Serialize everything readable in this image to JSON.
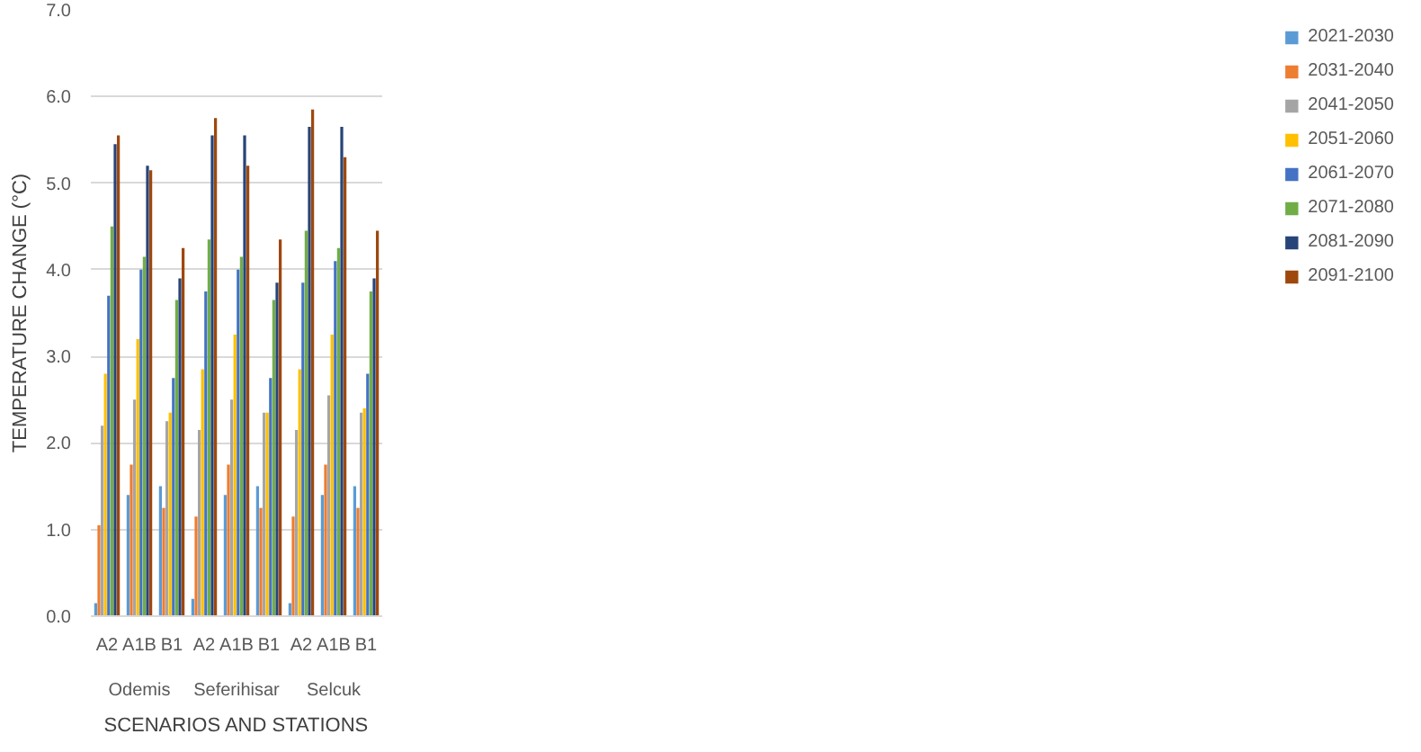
{
  "chart_data": {
    "type": "bar",
    "xlabel": "SCENARIOS AND STATIONS",
    "ylabel": "TEMPERATURE CHANGE (°C)",
    "categories": [
      "A2",
      "A1B",
      "B1",
      "A2",
      "A1B",
      "B1",
      "A2",
      "A1B",
      "B1"
    ],
    "annotations": [
      "Odemis",
      "Seferihisar",
      "Selcuk"
    ],
    "series": [
      {
        "name": "2021-2030",
        "color": "#5b9bd5",
        "values": [
          0.15,
          1.4,
          1.5,
          0.2,
          1.4,
          1.5,
          0.15,
          1.4,
          1.5
        ]
      },
      {
        "name": "2031-2040",
        "color": "#ed7d31",
        "values": [
          1.05,
          1.75,
          1.25,
          1.15,
          1.75,
          1.25,
          1.15,
          1.75,
          1.25
        ]
      },
      {
        "name": "2041-2050",
        "color": "#a5a5a5",
        "values": [
          2.2,
          2.5,
          2.25,
          2.15,
          2.5,
          2.35,
          2.15,
          2.55,
          2.35
        ]
      },
      {
        "name": "2051-2060",
        "color": "#ffc000",
        "values": [
          2.8,
          3.2,
          2.35,
          2.85,
          3.25,
          2.35,
          2.85,
          3.25,
          2.4
        ]
      },
      {
        "name": "2061-2070",
        "color": "#4472c4",
        "values": [
          3.7,
          4.0,
          2.75,
          3.75,
          4.0,
          2.75,
          3.85,
          4.1,
          2.8
        ]
      },
      {
        "name": "2071-2080",
        "color": "#70ad47",
        "values": [
          4.5,
          4.15,
          3.65,
          4.35,
          4.15,
          3.65,
          4.45,
          4.25,
          3.75
        ]
      },
      {
        "name": "2081-2090",
        "color": "#264478",
        "values": [
          5.45,
          5.2,
          3.9,
          5.55,
          5.55,
          3.85,
          5.65,
          5.65,
          3.9
        ]
      },
      {
        "name": "2091-2100",
        "color": "#9e480e",
        "values": [
          5.55,
          5.15,
          4.25,
          5.75,
          5.2,
          4.35,
          5.85,
          5.3,
          4.45
        ]
      }
    ],
    "ylim": [
      0,
      7
    ],
    "yticks": [
      {
        "value": 0,
        "label": "0.0"
      },
      {
        "value": 1,
        "label": "1.0"
      },
      {
        "value": 2,
        "label": "2.0"
      },
      {
        "value": 3,
        "label": "3.0"
      },
      {
        "value": 4,
        "label": "4.0"
      },
      {
        "value": 5,
        "label": "5.0"
      },
      {
        "value": 6,
        "label": "6.0"
      },
      {
        "value": 7,
        "label": "7.0"
      }
    ],
    "grid": "y",
    "legend": "right"
  }
}
